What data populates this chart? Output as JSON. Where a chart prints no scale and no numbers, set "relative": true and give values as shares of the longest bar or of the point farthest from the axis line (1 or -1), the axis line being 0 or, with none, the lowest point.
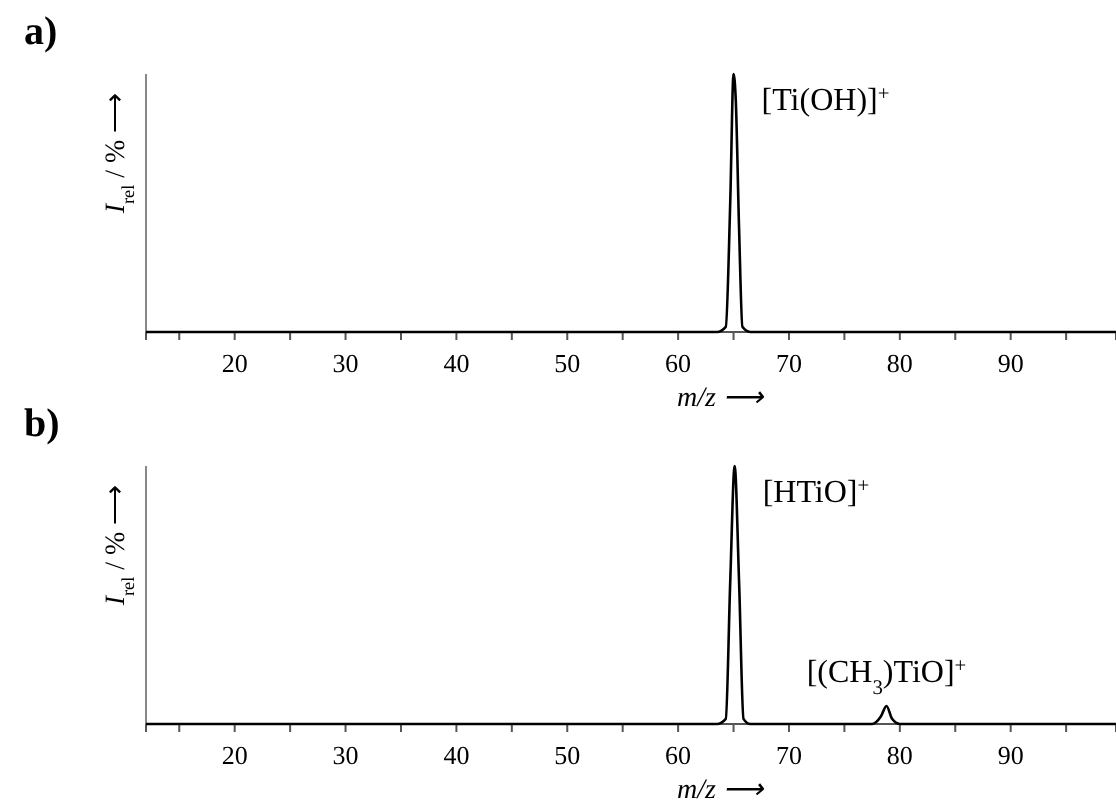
{
  "chart_data": [
    {
      "type": "line",
      "title": "a)",
      "xlabel": "m/z ⟶",
      "ylabel": "I$_{rel}$ / % ⟶",
      "relative": true,
      "xlim": [
        12,
        99.5
      ],
      "xticks": [
        {
          "value": 15,
          "label": null
        },
        20,
        {
          "value": 25,
          "label": null
        },
        30,
        {
          "value": 35,
          "label": null
        },
        40,
        {
          "value": 45,
          "label": null
        },
        50,
        {
          "value": 55,
          "label": null
        },
        60,
        {
          "value": 65,
          "label": null
        },
        70,
        {
          "value": 75,
          "label": null
        },
        80,
        {
          "value": 85,
          "label": null
        },
        90,
        {
          "value": 95,
          "label": null
        }
      ],
      "series": [
        {
          "color": "#000000",
          "x": [
            12,
            20,
            30,
            40,
            50,
            60,
            63.5,
            64.3,
            64.7,
            65.0,
            65.2,
            65.5,
            65.8,
            66.5,
            70,
            80,
            90,
            99.5
          ],
          "values": [
            0,
            0,
            0,
            0,
            0,
            0,
            0,
            0.02,
            0.5,
            1,
            0.9,
            0.4,
            0.02,
            0,
            0,
            0,
            0,
            0
          ]
        }
      ],
      "annotations": [
        {
          "text": "[Ti(OH)]$^{+}$",
          "x": 65.0,
          "y": 1
        }
      ]
    },
    {
      "type": "line",
      "title": "b)",
      "xlabel": "m/z ⟶",
      "ylabel": "I$_{rel}$ / % ⟶",
      "relative": true,
      "xlim": [
        12,
        99.5
      ],
      "xticks": [
        {
          "value": 15,
          "label": null
        },
        20,
        {
          "value": 25,
          "label": null
        },
        30,
        {
          "value": 35,
          "label": null
        },
        40,
        {
          "value": 45,
          "label": null
        },
        50,
        {
          "value": 55,
          "label": null
        },
        60,
        {
          "value": 65,
          "label": null
        },
        70,
        {
          "value": 75,
          "label": null
        },
        80,
        {
          "value": 85,
          "label": null
        },
        90,
        {
          "value": 95,
          "label": null
        }
      ],
      "series": [
        {
          "color": "#000000",
          "x": [
            12,
            20,
            30,
            40,
            50,
            60,
            63.5,
            64.3,
            64.7,
            65.1,
            65.5,
            65.9,
            66.5,
            70,
            77.5,
            78.3,
            78.8,
            79.3,
            80,
            90,
            99.5
          ],
          "values": [
            0,
            0,
            0,
            0,
            0,
            0,
            0,
            0.02,
            0.55,
            1,
            0.55,
            0.02,
            0,
            0,
            0,
            0.03,
            0.07,
            0.02,
            0,
            0,
            0
          ]
        }
      ],
      "annotations": [
        {
          "text": "[HTiO]$^{+}$",
          "x": 65.1,
          "y": 1
        },
        {
          "text": "[(CH$_{3}$)TiO]$^{+}$",
          "x": 78.8,
          "y": 0.07
        }
      ]
    }
  ]
}
